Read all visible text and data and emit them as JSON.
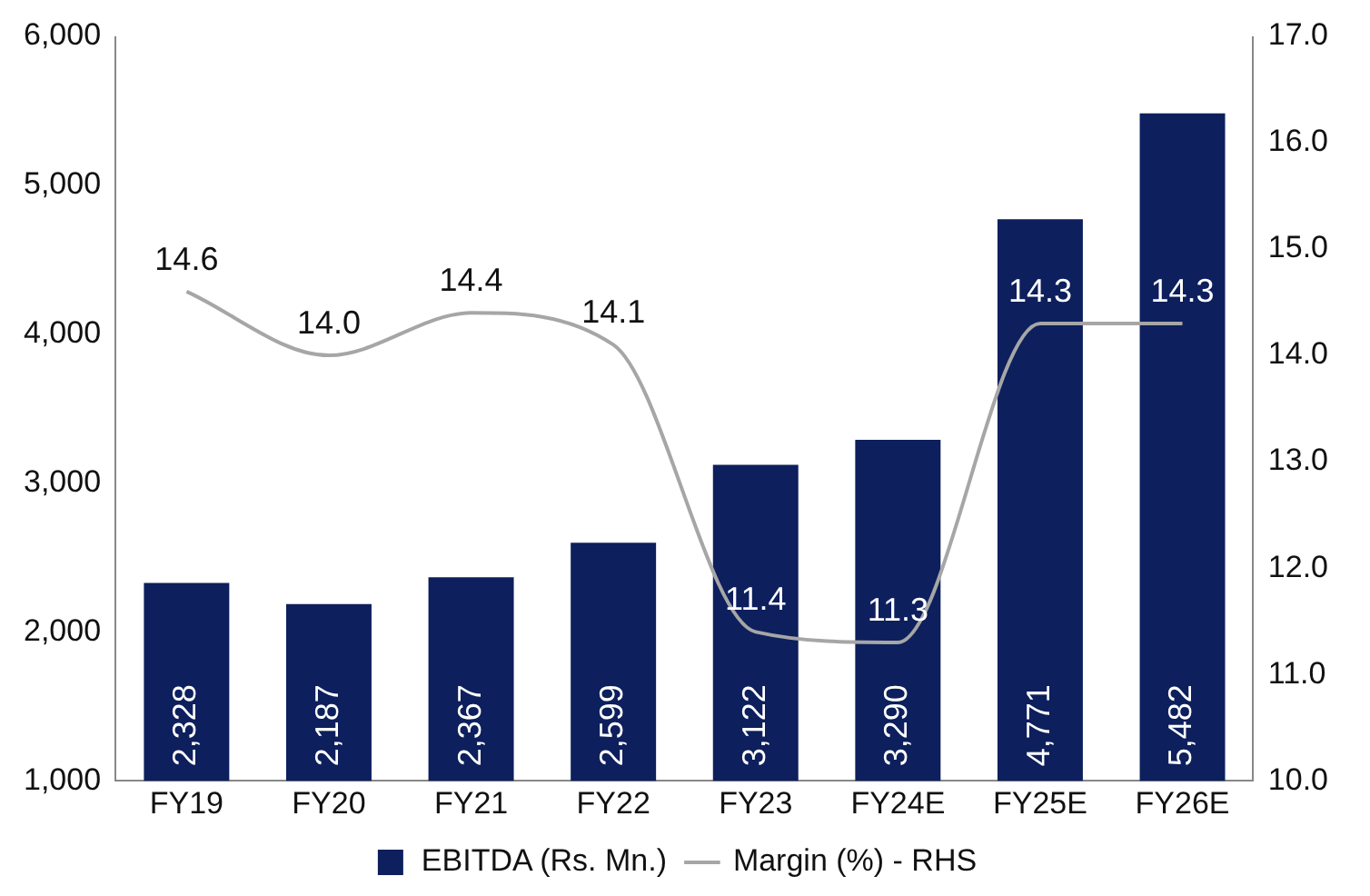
{
  "chart_data": {
    "type": "bar",
    "categories": [
      "FY19",
      "FY20",
      "FY21",
      "FY22",
      "FY23",
      "FY24E",
      "FY25E",
      "FY26E"
    ],
    "series": [
      {
        "name": "EBITDA (Rs. Mn.)",
        "color": "#0d1f5c",
        "values": [
          2328,
          2187,
          2367,
          2599,
          3122,
          3290,
          4771,
          5482
        ],
        "value_labels": [
          "2,328",
          "2,187",
          "2,367",
          "2,599",
          "3,122",
          "3,290",
          "4,771",
          "5,482"
        ]
      },
      {
        "name": "Margin (%) - RHS",
        "type": "line",
        "axis": "y2",
        "color": "#a6a6a6",
        "values": [
          14.6,
          14.0,
          14.4,
          14.1,
          11.4,
          11.3,
          14.3,
          14.3
        ],
        "value_labels": [
          "14.6",
          "14.0",
          "14.4",
          "14.1",
          "11.4",
          "11.3",
          "14.3",
          "14.3"
        ]
      }
    ],
    "ylim": [
      1000,
      6000
    ],
    "yticks": [
      {
        "value": 1000,
        "label": "1,000"
      },
      {
        "value": 2000,
        "label": "2,000"
      },
      {
        "value": 3000,
        "label": "3,000"
      },
      {
        "value": 4000,
        "label": "4,000"
      },
      {
        "value": 5000,
        "label": "5,000"
      },
      {
        "value": 6000,
        "label": "6,000"
      }
    ],
    "y2lim": [
      10,
      17
    ],
    "y2ticks": [
      {
        "value": 10,
        "label": "10.0"
      },
      {
        "value": 11,
        "label": "11.0"
      },
      {
        "value": 12,
        "label": "12.0"
      },
      {
        "value": 13,
        "label": "13.0"
      },
      {
        "value": 14,
        "label": "14.0"
      },
      {
        "value": 15,
        "label": "15.0"
      },
      {
        "value": 16,
        "label": "16.0"
      },
      {
        "value": 17,
        "label": "17.0"
      }
    ],
    "grid": false,
    "legend": "bottom",
    "marker": "none"
  }
}
